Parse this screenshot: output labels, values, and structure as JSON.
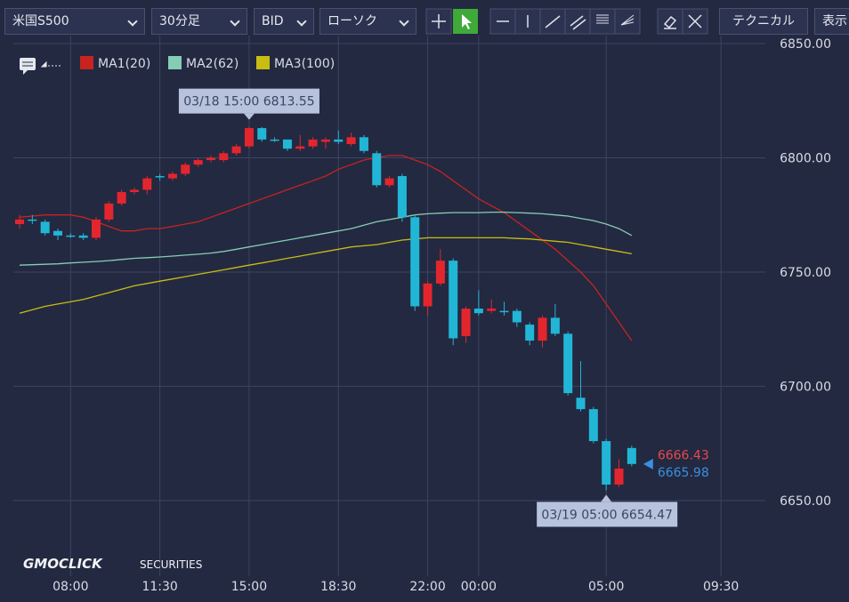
{
  "toolbar": {
    "symbol": "米国S500",
    "timeframe": "30分足",
    "side": "BID",
    "chart_style": "ローソク",
    "technical": "テクニカル",
    "display": "表示"
  },
  "chart_data": {
    "type": "candlestick",
    "x": [
      "06:00",
      "06:30",
      "07:00",
      "07:30",
      "08:00",
      "08:30",
      "09:00",
      "09:30",
      "10:00",
      "10:30",
      "11:00",
      "11:30",
      "12:00",
      "12:30",
      "13:00",
      "13:30",
      "14:00",
      "14:30",
      "15:00",
      "15:30",
      "16:00",
      "16:30",
      "17:00",
      "17:30",
      "18:00",
      "18:30",
      "19:00",
      "19:30",
      "20:00",
      "20:30",
      "21:00",
      "21:30",
      "22:00",
      "22:30",
      "23:00",
      "23:30",
      "00:00",
      "00:30",
      "01:00",
      "01:30",
      "02:00",
      "02:30",
      "03:00",
      "03:30",
      "04:00",
      "04:30",
      "05:00",
      "05:30",
      "06:00"
    ],
    "open": [
      6771,
      6773,
      6772,
      6768,
      6766,
      6766,
      6765,
      6773,
      6780,
      6785,
      6786,
      6792,
      6791,
      6793,
      6797,
      6799,
      6799,
      6802,
      6805,
      6813,
      6808,
      6808,
      6804,
      6805,
      6807,
      6808,
      6806,
      6809,
      6802,
      6788,
      6792,
      6774,
      6735,
      6745,
      6755,
      6722,
      6734,
      6733,
      6733,
      6733,
      6727,
      6720,
      6730,
      6723,
      6695,
      6690,
      6676,
      6657,
      6673
    ],
    "high": [
      6775,
      6775,
      6773,
      6769,
      6767,
      6767,
      6774,
      6781,
      6786,
      6787,
      6792,
      6793,
      6794,
      6798,
      6800,
      6801,
      6803,
      6806,
      6813.55,
      6813.5,
      6809,
      6808,
      6810,
      6809,
      6809,
      6812,
      6811,
      6810,
      6803,
      6792,
      6793,
      6775,
      6746,
      6760,
      6756,
      6735,
      6742,
      6738,
      6737,
      6734,
      6728,
      6731,
      6736,
      6724,
      6711,
      6691,
      6677,
      6668,
      6674
    ],
    "low": [
      6769,
      6771,
      6766,
      6764,
      6765,
      6764,
      6764,
      6772,
      6779,
      6784,
      6784,
      6790,
      6790,
      6792,
      6796,
      6798,
      6798,
      6801,
      6804,
      6807,
      6807,
      6803,
      6803,
      6804,
      6804,
      6806,
      6805,
      6802,
      6787,
      6787,
      6772,
      6733,
      6731,
      6744,
      6718,
      6719,
      6731,
      6732,
      6731,
      6726,
      6718,
      6717,
      6722,
      6696,
      6689,
      6675,
      6654.47,
      6656,
      6665
    ],
    "close": [
      6773,
      6773,
      6767,
      6766,
      6766,
      6765,
      6773,
      6780,
      6785,
      6786,
      6791,
      6792,
      6793,
      6797,
      6799,
      6800,
      6802,
      6805,
      6813,
      6808,
      6808,
      6804,
      6805,
      6808,
      6808,
      6807,
      6809,
      6803,
      6788,
      6791,
      6774,
      6735,
      6745,
      6755,
      6721,
      6734,
      6732,
      6734,
      6733,
      6728,
      6720,
      6730,
      6723,
      6697,
      6690,
      6676,
      6657,
      6664,
      6666
    ],
    "up_color": "#e3262d",
    "down_color": "#22b6d6",
    "series": [
      {
        "name": "MA1(20)",
        "color": "#c8231f",
        "values": [
          6774,
          6774.5,
          6775,
          6775,
          6775,
          6774,
          6772,
          6770,
          6768,
          6768,
          6769,
          6769,
          6770,
          6771,
          6772,
          6774,
          6776,
          6778,
          6780,
          6782,
          6784,
          6786,
          6788,
          6790,
          6792,
          6795,
          6797,
          6799,
          6800,
          6801,
          6801,
          6799,
          6797,
          6794,
          6790,
          6786,
          6782,
          6779,
          6776,
          6772,
          6768,
          6764,
          6760,
          6755,
          6750,
          6744,
          6736,
          6728,
          6720
        ]
      },
      {
        "name": "MA2(62)",
        "color": "#86cdb5",
        "values": [
          6753,
          6753.2,
          6753.4,
          6753.6,
          6754,
          6754.3,
          6754.6,
          6755,
          6755.5,
          6756,
          6756.3,
          6756.6,
          6757,
          6757.4,
          6757.8,
          6758.3,
          6759,
          6760,
          6761,
          6762,
          6763,
          6764,
          6765,
          6766,
          6767,
          6768,
          6769,
          6770.5,
          6772,
          6773,
          6774,
          6775,
          6775.5,
          6775.8,
          6776,
          6776,
          6776,
          6776.2,
          6776.2,
          6776,
          6775.8,
          6775.5,
          6775,
          6774.5,
          6773.5,
          6772.5,
          6771,
          6769,
          6766
        ]
      },
      {
        "name": "MA3(100)",
        "color": "#c9bd12",
        "values": [
          6732,
          6733.5,
          6735,
          6736,
          6737,
          6738,
          6739.5,
          6741,
          6742.5,
          6744,
          6745,
          6746,
          6747,
          6748,
          6749,
          6750,
          6751,
          6752,
          6753,
          6754,
          6755,
          6756,
          6757,
          6758,
          6759,
          6760,
          6761,
          6761.5,
          6762,
          6763,
          6764,
          6764.5,
          6765,
          6765,
          6765,
          6765,
          6765,
          6765,
          6765,
          6764.7,
          6764.5,
          6764,
          6763.5,
          6763,
          6762,
          6761,
          6760,
          6759,
          6758
        ]
      }
    ],
    "ylim": [
      6620,
      6853.5
    ],
    "yticks": [
      {
        "value": 6650,
        "label": "6650.00"
      },
      {
        "value": 6700,
        "label": "6700.00"
      },
      {
        "value": 6750,
        "label": "6750.00"
      },
      {
        "value": 6800,
        "label": "6800.00"
      },
      {
        "value": 6850,
        "label": "6850.00"
      }
    ],
    "xticks": [
      "08:00",
      "11:30",
      "15:00",
      "18:30",
      "22:00",
      "00:00",
      "05:00",
      "09:30"
    ],
    "grid": true,
    "high_label": "03/18 15:00 6813.55",
    "low_label": "03/19 05:00 6654.47",
    "last_prices": [
      {
        "value": 6666.43,
        "color": "#e8484c"
      },
      {
        "value": 6665.98,
        "color": "#3a8fe0"
      }
    ],
    "watermark": [
      "GMOCLICK",
      "SECURITIES"
    ]
  }
}
